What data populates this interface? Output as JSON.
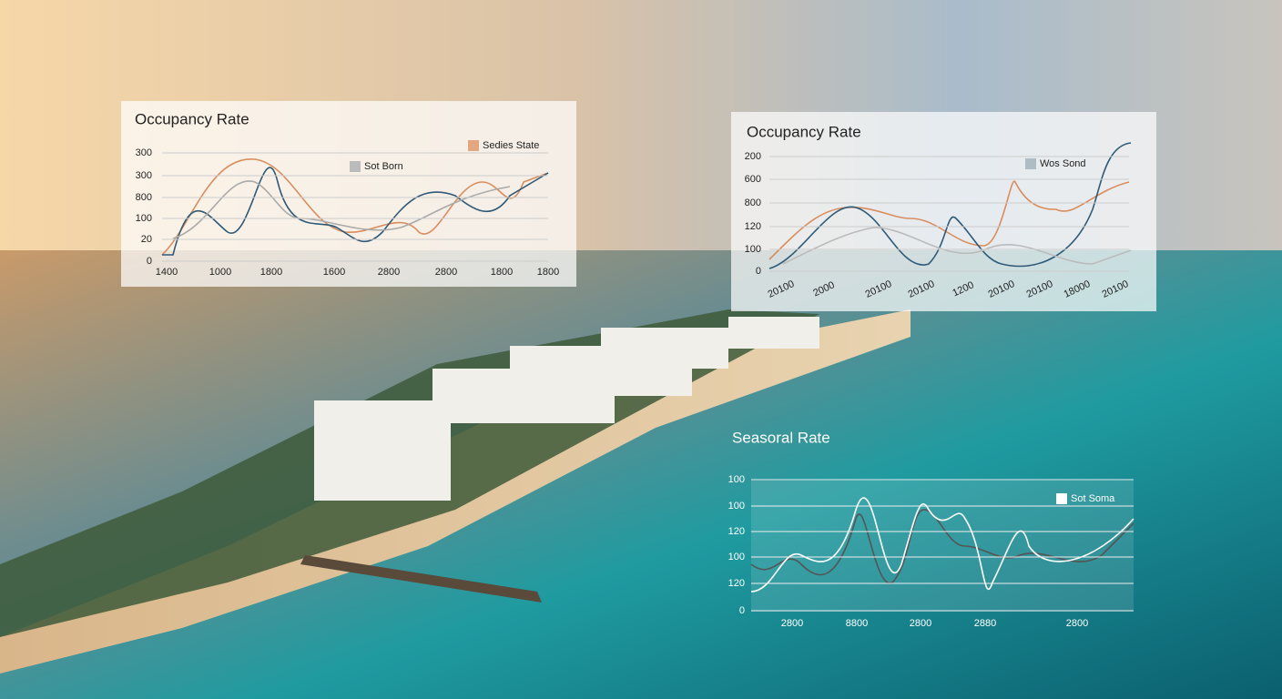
{
  "panels": [
    {
      "title": "Occupancy Rate",
      "legend": [
        "Sedies State",
        "Sot Born"
      ],
      "y_labels": [
        "300",
        "300",
        "800",
        "100",
        "20",
        "0"
      ],
      "x_labels": [
        "1400",
        "1000",
        "1800",
        "1600",
        "2800",
        "2800",
        "1800",
        "1800"
      ]
    },
    {
      "title": "Occupancy Rate",
      "legend": [
        "Wos Sond"
      ],
      "y_labels": [
        "200",
        "600",
        "800",
        "120",
        "100",
        "0"
      ],
      "x_labels": [
        "20100",
        "2000",
        "20100",
        "20100",
        "1200",
        "20100",
        "20100",
        "18000",
        "20100"
      ]
    },
    {
      "title": "Seasoral Rate",
      "legend": [
        "Sot Soma"
      ],
      "y_labels": [
        "100",
        "100",
        "120",
        "100",
        "120",
        "0"
      ],
      "x_labels": [
        "2800",
        "8800",
        "2800",
        "2880",
        "2800"
      ]
    }
  ]
}
